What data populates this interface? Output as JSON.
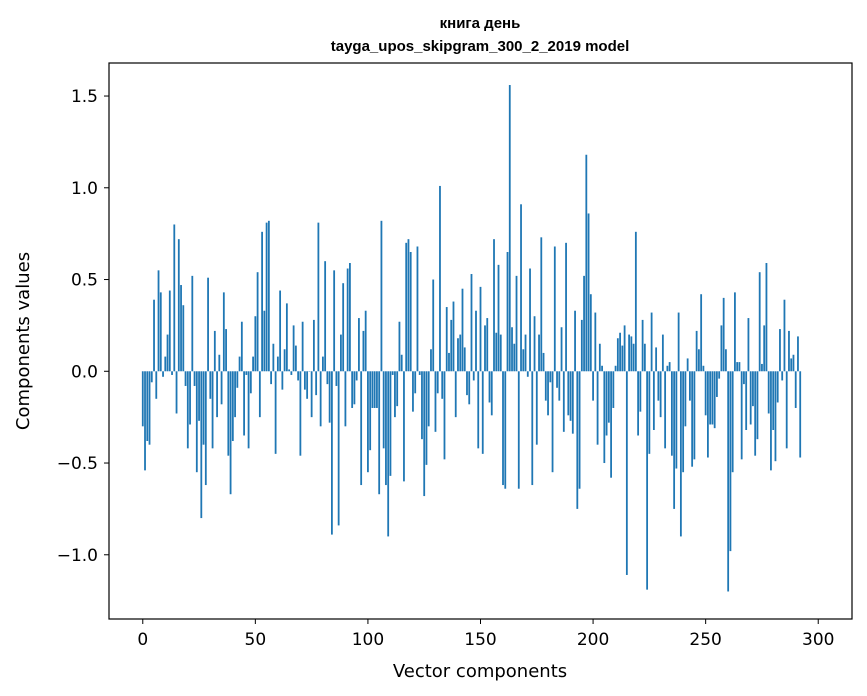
{
  "chart_data": {
    "type": "bar",
    "title": "книга день",
    "subtitle": "tayga_upos_skipgram_300_2_2019 model",
    "xlabel": "Vector components",
    "ylabel": "Components values",
    "xlim": [
      -15,
      315
    ],
    "ylim": [
      -1.35,
      1.68
    ],
    "xticks": [
      0,
      50,
      100,
      150,
      200,
      250,
      300
    ],
    "yticks": [
      1.5,
      1.0,
      0.5,
      0.0,
      -0.5,
      -1.0
    ],
    "ytick_labels": [
      "1.5",
      "1.0",
      "0.5",
      "0.0",
      "−0.5",
      "−1.0"
    ],
    "grid": false,
    "bar_color": "#1f77b4",
    "values": [
      -0.3,
      -0.54,
      -0.38,
      -0.4,
      -0.06,
      0.39,
      -0.15,
      0.55,
      0.43,
      -0.03,
      0.08,
      0.2,
      0.44,
      -0.02,
      0.8,
      -0.23,
      0.72,
      0.47,
      0.36,
      -0.08,
      -0.42,
      -0.29,
      0.52,
      -0.08,
      -0.55,
      -0.27,
      -0.8,
      -0.4,
      -0.62,
      0.51,
      -0.15,
      -0.42,
      0.22,
      -0.25,
      0.09,
      -0.18,
      0.43,
      0.23,
      -0.46,
      -0.67,
      -0.38,
      -0.25,
      -0.09,
      0.08,
      0.27,
      -0.35,
      -0.02,
      -0.42,
      -0.12,
      0.08,
      0.3,
      0.54,
      -0.25,
      0.76,
      0.33,
      0.81,
      0.82,
      -0.07,
      0.15,
      -0.45,
      0.08,
      0.44,
      -0.1,
      0.12,
      0.37,
      0.01,
      -0.02,
      0.25,
      0.14,
      -0.05,
      -0.46,
      0.27,
      -0.1,
      -0.15,
      0.0,
      -0.25,
      0.28,
      -0.13,
      0.81,
      -0.3,
      0.08,
      0.6,
      -0.07,
      -0.28,
      -0.89,
      0.55,
      -0.08,
      -0.84,
      0.2,
      0.48,
      -0.3,
      0.56,
      0.59,
      -0.2,
      -0.18,
      -0.05,
      0.29,
      -0.62,
      0.22,
      0.33,
      -0.55,
      -0.43,
      -0.2,
      -0.2,
      -0.2,
      -0.67,
      0.82,
      -0.42,
      -0.62,
      -0.9,
      -0.57,
      -0.02,
      -0.25,
      -0.19,
      0.27,
      0.09,
      -0.6,
      0.7,
      0.72,
      0.65,
      -0.22,
      -0.12,
      0.68,
      -0.02,
      -0.37,
      -0.68,
      -0.51,
      -0.3,
      0.12,
      0.5,
      -0.33,
      -0.12,
      1.01,
      -0.15,
      -0.48,
      0.35,
      0.1,
      0.28,
      0.38,
      -0.25,
      0.18,
      0.2,
      0.45,
      0.13,
      -0.13,
      -0.18,
      0.53,
      -0.05,
      0.33,
      -0.42,
      0.46,
      -0.45,
      0.25,
      0.29,
      -0.17,
      -0.24,
      0.72,
      0.21,
      0.58,
      0.2,
      -0.62,
      -0.64,
      0.65,
      1.56,
      0.24,
      0.15,
      0.52,
      -0.64,
      0.91,
      0.12,
      0.2,
      -0.03,
      0.56,
      -0.62,
      0.3,
      -0.4,
      0.2,
      0.73,
      0.1,
      -0.16,
      -0.24,
      -0.06,
      -0.55,
      0.68,
      -0.09,
      -0.16,
      0.24,
      -0.33,
      0.7,
      -0.24,
      -0.27,
      -0.34,
      0.33,
      -0.75,
      -0.64,
      0.28,
      0.52,
      1.18,
      0.86,
      0.42,
      -0.16,
      0.32,
      -0.4,
      0.15,
      0.03,
      -0.5,
      -0.35,
      -0.28,
      -0.58,
      -0.2,
      0.03,
      0.18,
      0.21,
      0.14,
      0.25,
      -1.11,
      0.2,
      0.19,
      0.15,
      0.76,
      -0.35,
      -0.22,
      0.28,
      0.15,
      -1.19,
      -0.45,
      0.32,
      -0.32,
      0.13,
      -0.16,
      -0.25,
      0.2,
      -0.42,
      0.03,
      0.05,
      -0.46,
      -0.75,
      -0.53,
      0.32,
      -0.9,
      -0.55,
      -0.3,
      0.07,
      -0.16,
      -0.52,
      -0.48,
      0.22,
      0.12,
      0.42,
      0.03,
      -0.24,
      -0.47,
      -0.29,
      -0.29,
      -0.31,
      -0.14,
      -0.04,
      0.25,
      0.4,
      0.12,
      -1.2,
      -0.98,
      -0.55,
      0.43,
      0.05,
      0.05,
      -0.48,
      -0.07,
      -0.32,
      0.29,
      -0.29,
      -0.19,
      -0.46,
      -0.37,
      0.54,
      0.04,
      0.25,
      0.59,
      -0.23,
      -0.54,
      -0.32,
      -0.49,
      -0.17,
      0.23,
      -0.05,
      0.39,
      -0.42,
      0.22,
      0.07,
      0.09,
      -0.2,
      0.19,
      -0.47
    ]
  }
}
